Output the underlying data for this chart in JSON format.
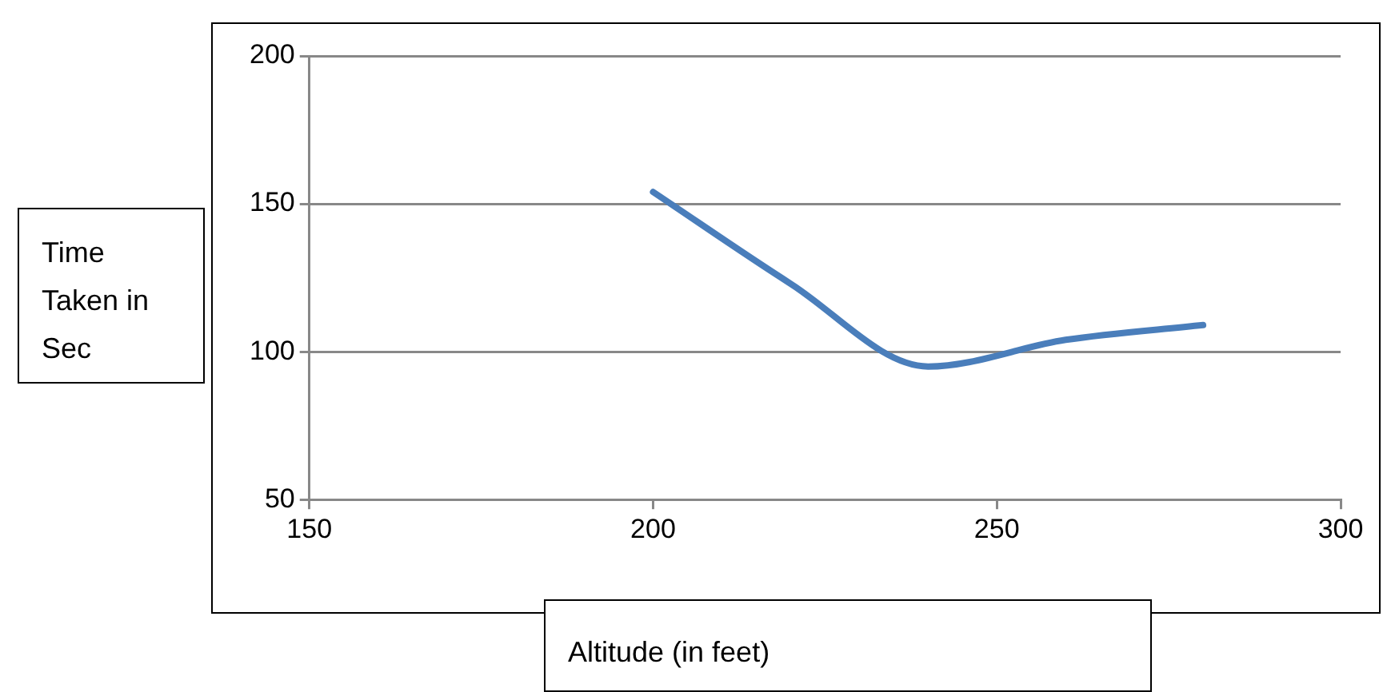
{
  "chart_data": {
    "type": "line",
    "xlabel": "Altitude (in feet)",
    "ylabel": "Time Taken in Sec",
    "x": [
      200,
      220,
      240,
      260,
      280
    ],
    "series": [
      {
        "color": "#4a7ebb",
        "values": [
          154,
          123,
          95,
          104,
          109
        ]
      }
    ],
    "xlim": [
      150,
      300
    ],
    "xticks": [
      150,
      200,
      250,
      300
    ],
    "ylim": [
      50,
      200
    ],
    "yticks": [
      50,
      100,
      150,
      200
    ],
    "grid": "y",
    "legend": false,
    "marker": "none",
    "line_style": "solid"
  }
}
